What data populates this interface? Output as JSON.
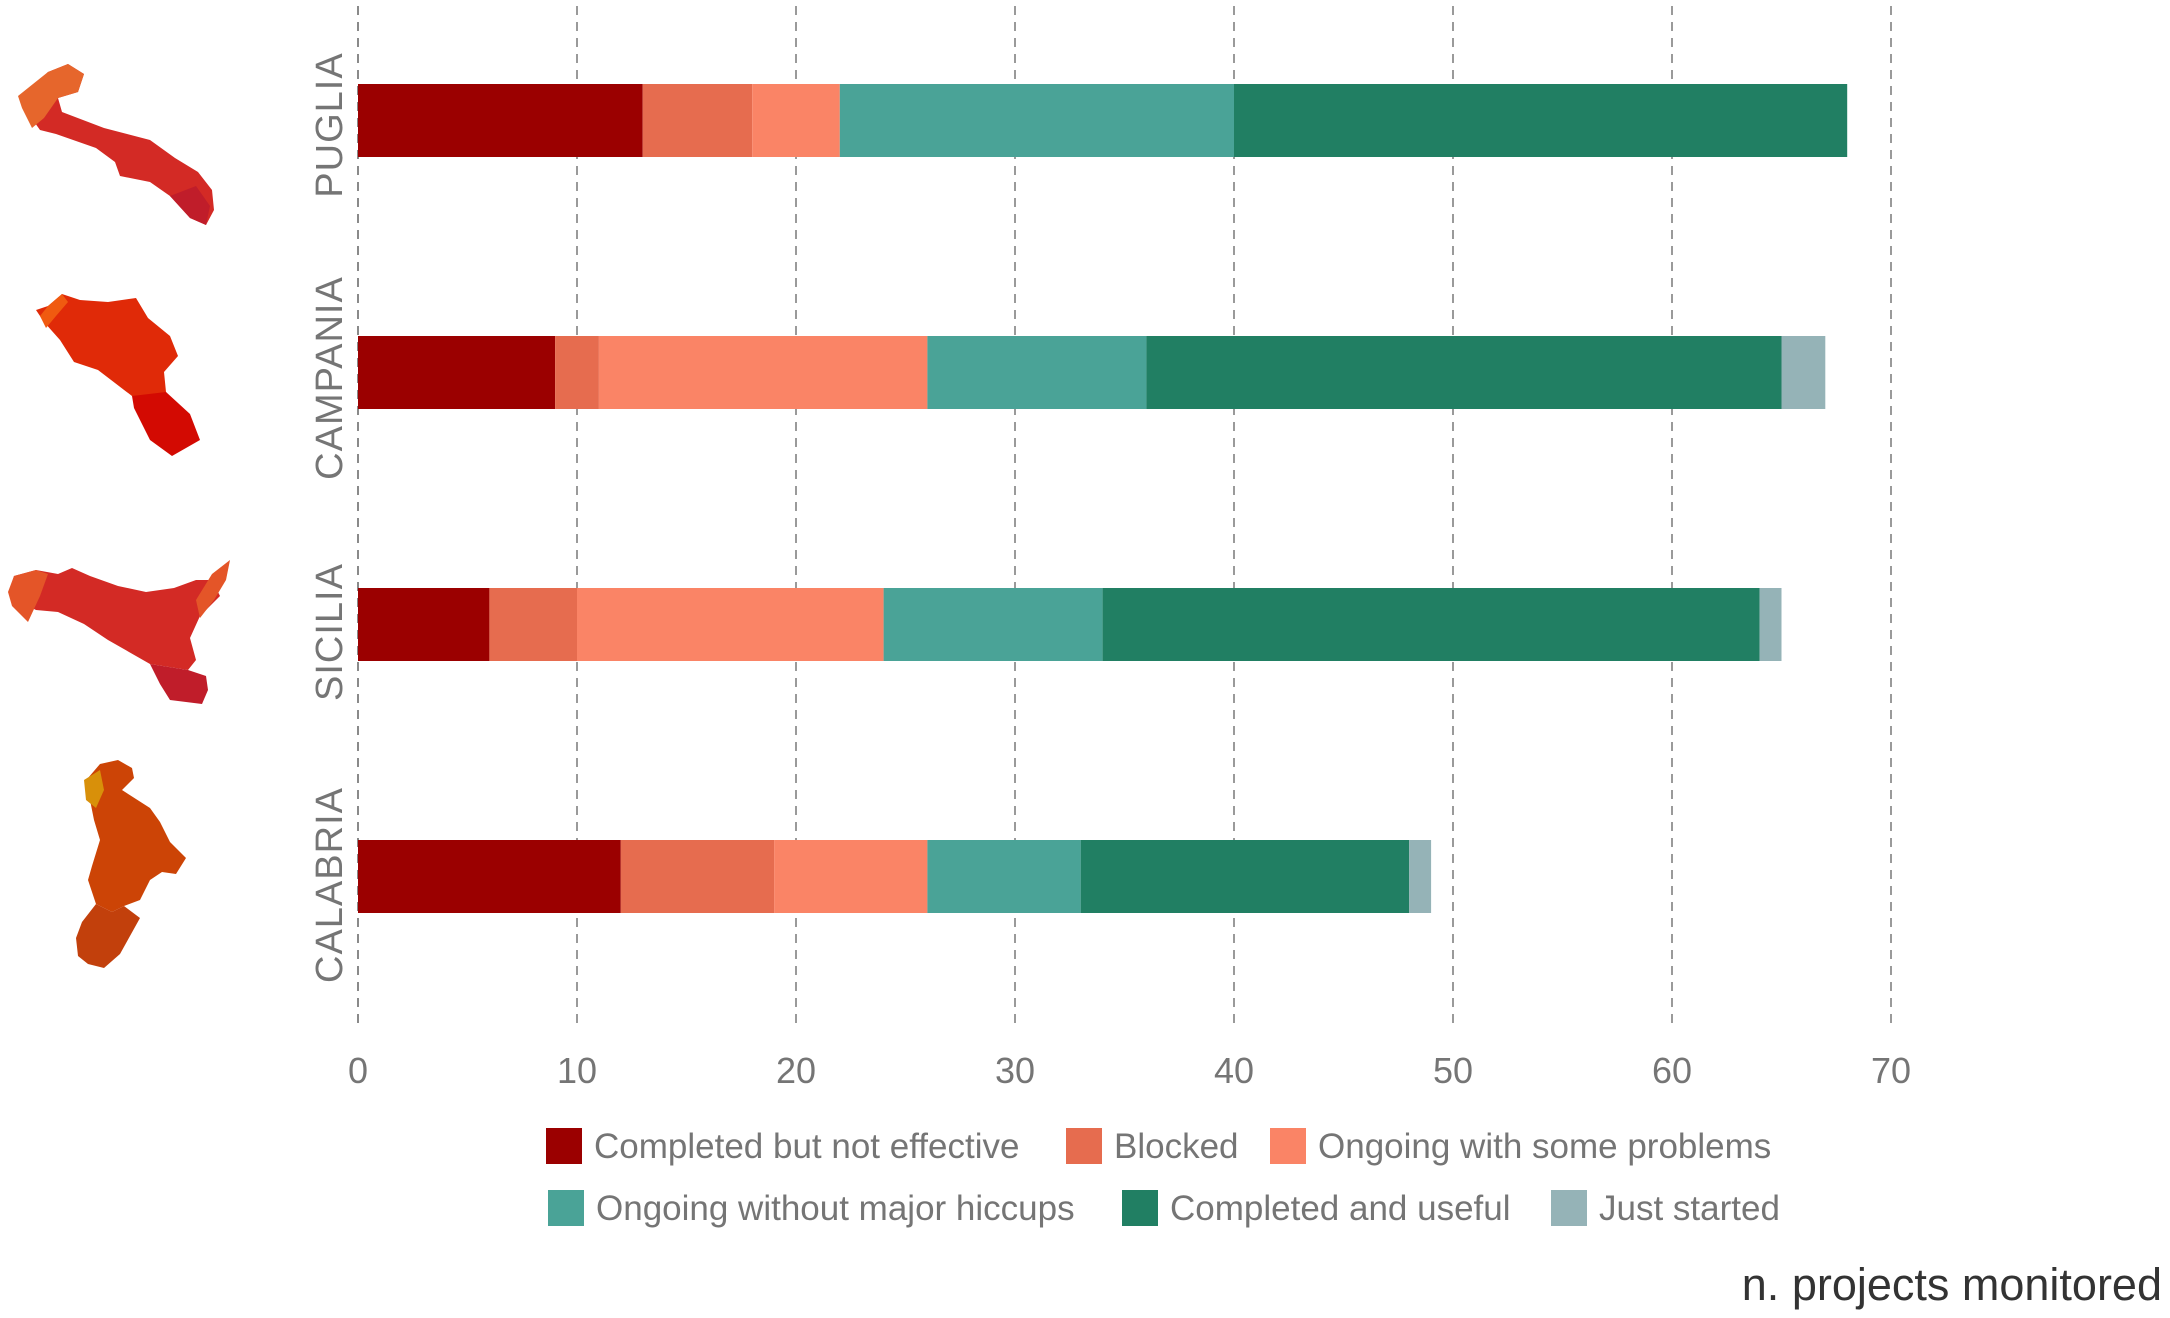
{
  "chart_data": {
    "type": "bar",
    "orientation": "horizontal",
    "stacked": true,
    "categories": [
      "PUGLIA",
      "CAMPANIA",
      "SICILIA",
      "CALABRIA"
    ],
    "series": [
      {
        "name": "Completed but not effective",
        "color": "#9b0000",
        "values": [
          13,
          9,
          6,
          12
        ]
      },
      {
        "name": "Blocked",
        "color": "#e66c4f",
        "values": [
          5,
          2,
          4,
          7
        ]
      },
      {
        "name": "Ongoing with some problems",
        "color": "#fa8466",
        "values": [
          4,
          15,
          14,
          7
        ]
      },
      {
        "name": "Ongoing without major hiccups",
        "color": "#4aa397",
        "values": [
          18,
          10,
          10,
          7
        ]
      },
      {
        "name": "Completed and useful",
        "color": "#217f63",
        "values": [
          28,
          29,
          30,
          15
        ]
      },
      {
        "name": "Just started",
        "color": "#95b3b7",
        "values": [
          0,
          2,
          1,
          1
        ]
      }
    ],
    "xlim": [
      0,
      70
    ],
    "xticks": [
      "0",
      "10",
      "20",
      "30",
      "40",
      "50",
      "60",
      "70"
    ],
    "xlabel": "n. projects monitored",
    "grid": true,
    "legend_position": "bottom",
    "region_icons": [
      {
        "name": "puglia-map-icon",
        "colors": [
          "#d32a25",
          "#e6662c"
        ]
      },
      {
        "name": "campania-map-icon",
        "colors": [
          "#e02a08",
          "#f05a10",
          "#d30a02"
        ]
      },
      {
        "name": "sicilia-map-icon",
        "colors": [
          "#d32a25",
          "#e45528",
          "#c01d2a"
        ]
      },
      {
        "name": "calabria-map-icon",
        "colors": [
          "#cc4406",
          "#d8900a",
          "#c2400c"
        ]
      }
    ]
  }
}
